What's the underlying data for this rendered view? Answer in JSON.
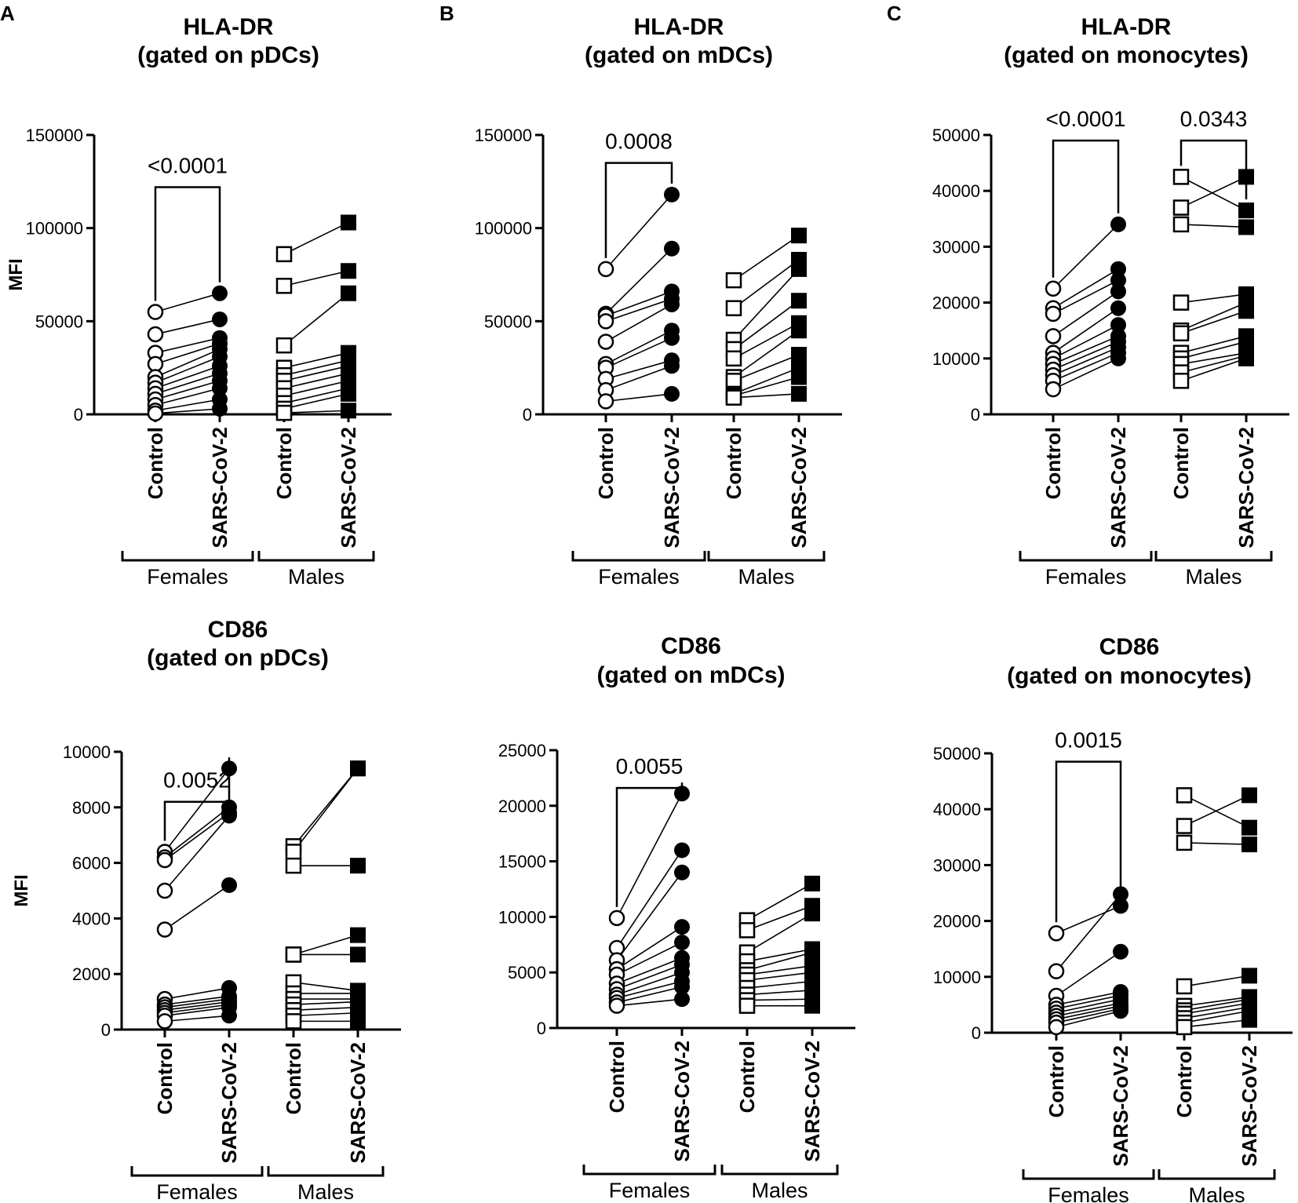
{
  "panel_letters": [
    "A",
    "B",
    "C"
  ],
  "group_labels": [
    "Females",
    "Males"
  ],
  "category_labels": [
    "Control",
    "SARS-CoV-2"
  ],
  "chart_data": [
    {
      "type": "scatter",
      "panel": "A",
      "title_line1": "HLA-DR",
      "title_line2": "(gated on pDCs)",
      "ylabel": "MFI",
      "ylim": [
        0,
        150000
      ],
      "yticks": [
        "0",
        "50000",
        "100000",
        "150000"
      ],
      "groups": [
        "Females",
        "Males"
      ],
      "categories": [
        "Control",
        "SARS-CoV-2"
      ],
      "series": [
        {
          "name": "Females",
          "pairs": [
            [
              55000,
              65000
            ],
            [
              43000,
              51000
            ],
            [
              33000,
              41000
            ],
            [
              27000,
              38000
            ],
            [
              20000,
              35000
            ],
            [
              17000,
              31000
            ],
            [
              14000,
              26000
            ],
            [
              11000,
              22000
            ],
            [
              8000,
              18000
            ],
            [
              5000,
              14000
            ],
            [
              2000,
              8000
            ],
            [
              500,
              3000
            ]
          ]
        },
        {
          "name": "Males",
          "pairs": [
            [
              86000,
              103000
            ],
            [
              69000,
              77000
            ],
            [
              37000,
              65000
            ],
            [
              25000,
              33000
            ],
            [
              21000,
              29000
            ],
            [
              18000,
              26000
            ],
            [
              14000,
              22000
            ],
            [
              10000,
              18000
            ],
            [
              6000,
              14000
            ],
            [
              3000,
              11000
            ],
            [
              800,
              2000
            ]
          ]
        }
      ],
      "comparisons": [
        {
          "group": 0,
          "label": "<0.0001",
          "y": 122000
        }
      ]
    },
    {
      "type": "scatter",
      "panel": "B",
      "title_line1": "HLA-DR",
      "title_line2": "(gated on mDCs)",
      "ylabel": "",
      "ylim": [
        0,
        150000
      ],
      "yticks": [
        "0",
        "50000",
        "100000",
        "150000"
      ],
      "groups": [
        "Females",
        "Males"
      ],
      "categories": [
        "Control",
        "SARS-CoV-2"
      ],
      "series": [
        {
          "name": "Females",
          "pairs": [
            [
              78000,
              118000
            ],
            [
              54000,
              89000
            ],
            [
              53000,
              66000
            ],
            [
              50000,
              62000
            ],
            [
              39000,
              59000
            ],
            [
              27000,
              45000
            ],
            [
              25000,
              41000
            ],
            [
              19000,
              29000
            ],
            [
              13000,
              26000
            ],
            [
              7000,
              11000
            ]
          ]
        },
        {
          "name": "Males",
          "pairs": [
            [
              72000,
              96000
            ],
            [
              57000,
              83000
            ],
            [
              40000,
              78000
            ],
            [
              35000,
              61000
            ],
            [
              30000,
              49000
            ],
            [
              20000,
              45000
            ],
            [
              18000,
              32000
            ],
            [
              11000,
              25000
            ],
            [
              10000,
              20000
            ],
            [
              9000,
              11000
            ]
          ]
        }
      ],
      "comparisons": [
        {
          "group": 0,
          "label": "0.0008",
          "y": 135000
        }
      ]
    },
    {
      "type": "scatter",
      "panel": "C",
      "title_line1": "HLA-DR",
      "title_line2": "(gated on monocytes)",
      "ylabel": "",
      "ylim": [
        0,
        50000
      ],
      "yticks": [
        "0",
        "10000",
        "20000",
        "30000",
        "40000",
        "50000"
      ],
      "groups": [
        "Females",
        "Males"
      ],
      "categories": [
        "Control",
        "SARS-CoV-2"
      ],
      "series": [
        {
          "name": "Females",
          "pairs": [
            [
              22500,
              34000
            ],
            [
              19000,
              26000
            ],
            [
              18000,
              24000
            ],
            [
              14000,
              22000
            ],
            [
              11000,
              19000
            ],
            [
              10000,
              16000
            ],
            [
              9000,
              14000
            ],
            [
              8000,
              13000
            ],
            [
              7000,
              12000
            ],
            [
              6000,
              11000
            ],
            [
              4500,
              10000
            ]
          ]
        },
        {
          "name": "Males",
          "pairs": [
            [
              42500,
              36500
            ],
            [
              37000,
              42500
            ],
            [
              34000,
              33500
            ],
            [
              20000,
              21500
            ],
            [
              15000,
              20000
            ],
            [
              14500,
              18500
            ],
            [
              11000,
              14000
            ],
            [
              10000,
              13000
            ],
            [
              9000,
              11000
            ],
            [
              7500,
              10500
            ],
            [
              6000,
              10000
            ]
          ]
        }
      ],
      "comparisons": [
        {
          "group": 0,
          "label": "<0.0001",
          "y": 49000
        },
        {
          "group": 1,
          "label": "0.0343",
          "y": 49000
        }
      ]
    },
    {
      "type": "scatter",
      "panel": "",
      "title_line1": "CD86",
      "title_line2": "(gated on pDCs)",
      "ylabel": "MFI",
      "ylim": [
        0,
        10000
      ],
      "yticks": [
        "0",
        "2000",
        "4000",
        "6000",
        "8000",
        "10000"
      ],
      "groups": [
        "Females",
        "Males"
      ],
      "categories": [
        "Control",
        "SARS-CoV-2"
      ],
      "series": [
        {
          "name": "Females",
          "pairs": [
            [
              6400,
              9400
            ],
            [
              6200,
              8000
            ],
            [
              6100,
              7800
            ],
            [
              5000,
              7700
            ],
            [
              3600,
              5200
            ],
            [
              1100,
              1500
            ],
            [
              900,
              1200
            ],
            [
              800,
              1100
            ],
            [
              700,
              1000
            ],
            [
              600,
              900
            ],
            [
              500,
              800
            ],
            [
              300,
              500
            ]
          ]
        },
        {
          "name": "Males",
          "pairs": [
            [
              6600,
              9400
            ],
            [
              6400,
              9400
            ],
            [
              5900,
              5900
            ],
            [
              2700,
              3400
            ],
            [
              2700,
              2700
            ],
            [
              1700,
              1400
            ],
            [
              1300,
              1300
            ],
            [
              1100,
              1100
            ],
            [
              900,
              1000
            ],
            [
              700,
              800
            ],
            [
              500,
              600
            ],
            [
              300,
              300
            ]
          ]
        }
      ],
      "comparisons": [
        {
          "group": 0,
          "label": "0.0052",
          "y": 8200
        }
      ]
    },
    {
      "type": "scatter",
      "panel": "",
      "title_line1": "CD86",
      "title_line2": "(gated on mDCs)",
      "ylabel": "",
      "ylim": [
        0,
        25000
      ],
      "yticks": [
        "0",
        "5000",
        "10000",
        "15000",
        "20000",
        "25000"
      ],
      "groups": [
        "Females",
        "Males"
      ],
      "categories": [
        "Control",
        "SARS-CoV-2"
      ],
      "series": [
        {
          "name": "Females",
          "pairs": [
            [
              9900,
              21100
            ],
            [
              7200,
              16000
            ],
            [
              6100,
              14000
            ],
            [
              5300,
              9100
            ],
            [
              4800,
              7700
            ],
            [
              4000,
              6300
            ],
            [
              3500,
              5700
            ],
            [
              3000,
              5000
            ],
            [
              2700,
              4200
            ],
            [
              2300,
              3700
            ],
            [
              2000,
              2600
            ]
          ]
        },
        {
          "name": "Males",
          "pairs": [
            [
              9700,
              13000
            ],
            [
              8800,
              11000
            ],
            [
              6800,
              10300
            ],
            [
              6000,
              7100
            ],
            [
              5200,
              6800
            ],
            [
              4800,
              5600
            ],
            [
              4300,
              5000
            ],
            [
              3600,
              4200
            ],
            [
              3000,
              3400
            ],
            [
              2500,
              2600
            ],
            [
              2000,
              2000
            ]
          ]
        }
      ],
      "comparisons": [
        {
          "group": 0,
          "label": "0.0055",
          "y": 21600
        }
      ]
    },
    {
      "type": "scatter",
      "panel": "",
      "title_line1": "CD86",
      "title_line2": "(gated on monocytes)",
      "ylabel": "",
      "ylim": [
        0,
        50000
      ],
      "yticks": [
        "0",
        "10000",
        "20000",
        "30000",
        "40000",
        "50000"
      ],
      "groups": [
        "Females",
        "Males"
      ],
      "categories": [
        "Control",
        "SARS-CoV-2"
      ],
      "series": [
        {
          "name": "Females",
          "pairs": [
            [
              17800,
              22700
            ],
            [
              11000,
              24800
            ],
            [
              6600,
              14500
            ],
            [
              5000,
              7300
            ],
            [
              4300,
              6700
            ],
            [
              3600,
              6000
            ],
            [
              3000,
              5300
            ],
            [
              2400,
              4800
            ],
            [
              1800,
              4300
            ],
            [
              1000,
              3900
            ]
          ]
        },
        {
          "name": "Males",
          "pairs": [
            [
              42500,
              36700
            ],
            [
              37000,
              42500
            ],
            [
              34000,
              33700
            ],
            [
              8300,
              10200
            ],
            [
              4800,
              6400
            ],
            [
              4000,
              6000
            ],
            [
              3400,
              5300
            ],
            [
              2600,
              4600
            ],
            [
              1800,
              3900
            ],
            [
              1000,
              2300
            ]
          ]
        }
      ],
      "comparisons": [
        {
          "group": 0,
          "label": "0.0015",
          "y": 48500
        }
      ]
    }
  ]
}
